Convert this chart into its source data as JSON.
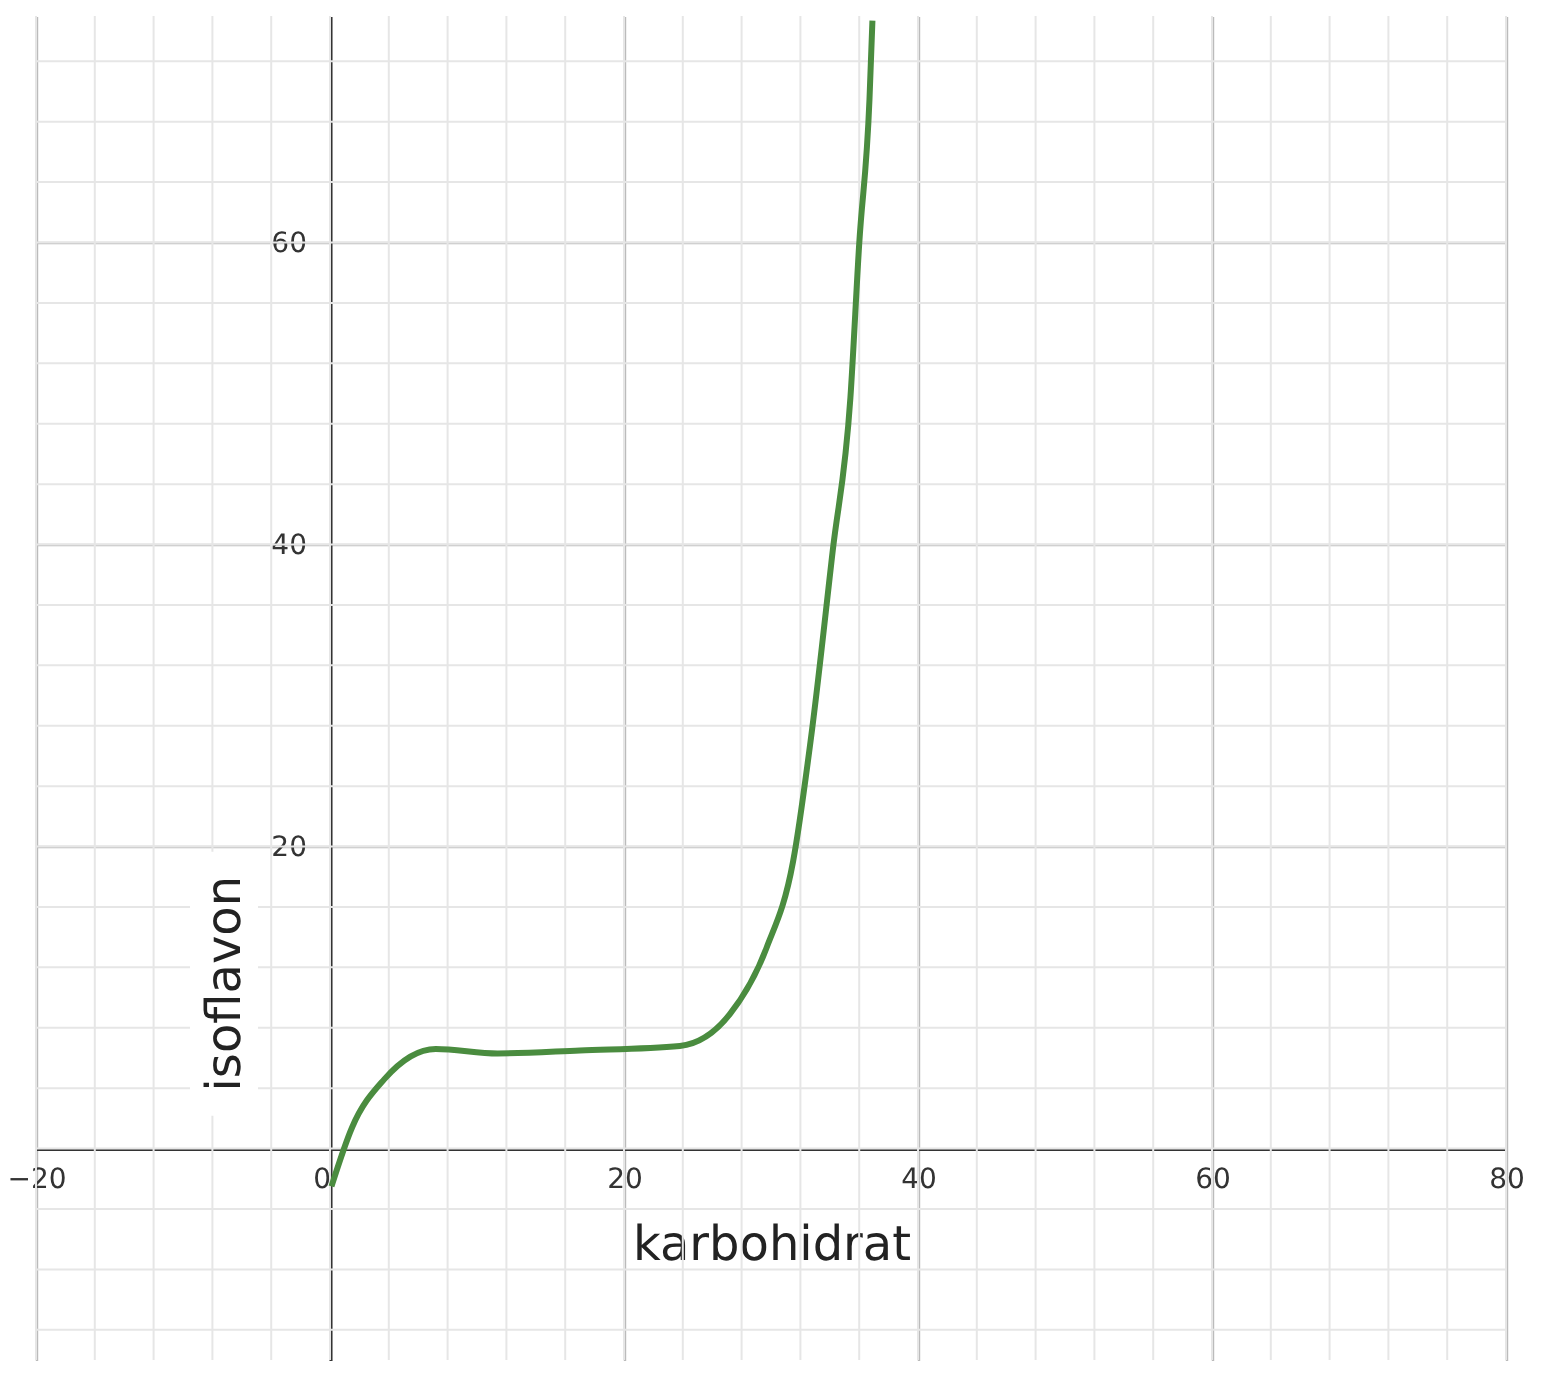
{
  "chart_data": {
    "type": "line",
    "xlabel": "karbohidrat",
    "ylabel": "isoflavon",
    "x": [
      0.1,
      1.5,
      3.7,
      7.2,
      11.4,
      17,
      23.8,
      27.2,
      29.7,
      31.5,
      32.8,
      34.2,
      35.4,
      36,
      36.7,
      36.9
    ],
    "series": [
      {
        "color": "#4a8c3f",
        "values": [
          -2.5,
          1.4,
          4.6,
          6.6,
          6.3,
          6.5,
          6.8,
          8.9,
          13.3,
          19,
          27.8,
          39.6,
          49.7,
          59.9,
          69.5,
          74.7
        ]
      }
    ],
    "xlim": [
      -20,
      80
    ],
    "ylim": [
      -14,
      75
    ],
    "xticks": [
      -20,
      0,
      20,
      40,
      60,
      80
    ],
    "yticks": [
      20,
      40,
      60
    ],
    "grid": true,
    "marker": "none",
    "line_style": "solid"
  }
}
